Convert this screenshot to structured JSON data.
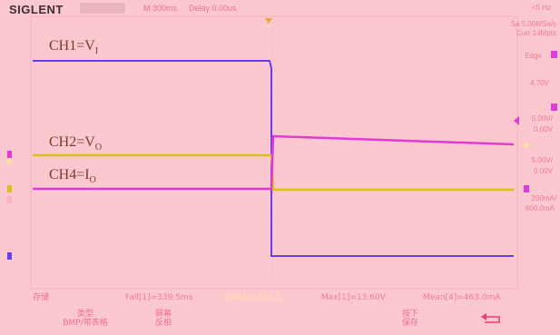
{
  "header": {
    "brand": "SIGLENT",
    "timebase": "M 300ms",
    "delay": "Delay 0.00us"
  },
  "right_panel": {
    "frequency": "<5 Hz",
    "sample_rate": "Sa 5.00MSa/s",
    "memory_depth": "Curr 14Mpts",
    "trigger_type": "Edge",
    "trigger_level": "4.70V",
    "ch1_scale": "5.00V/",
    "ch1_offset": "0.00V",
    "ch2_scale": "5.00V/",
    "ch2_offset": "0.00V",
    "ch4_scale": "200mA/",
    "ch4_offset": "600.0mA"
  },
  "channels": {
    "ch1_label": "CH1=V",
    "ch1_sub": "I",
    "ch2_label": "CH2=V",
    "ch2_sub": "O",
    "ch4_label": "CH4=I",
    "ch4_sub": "O"
  },
  "measurements": {
    "left": "Fall[1]=339.5ms",
    "mid": "Fall[4]=352.1",
    "max": "Max[1]=13.60V",
    "mean": "Mean[4]=463.0mA"
  },
  "menu": {
    "storage": "存储",
    "type_label": "类型",
    "type_value": "BMP/带表格",
    "screen_label": "屏幕",
    "screen_value": "反相",
    "press_label": "按下",
    "press_value": "保存"
  },
  "colors": {
    "background": "#fcc8cf",
    "ch1": "#6a3cf0",
    "ch2": "#d6c21a",
    "ch4": "#e23ad6",
    "accent": "#ef6f8f"
  }
}
